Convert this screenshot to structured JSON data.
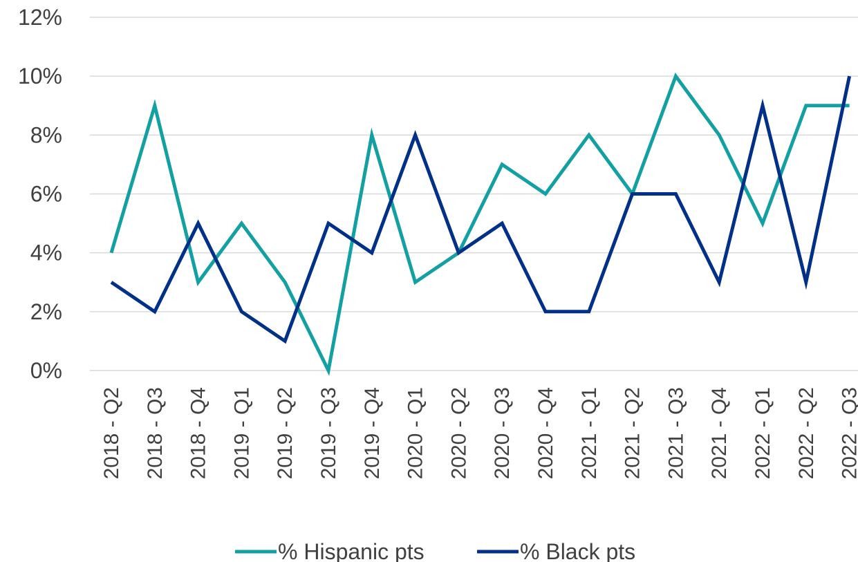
{
  "chart_data": {
    "type": "line",
    "categories": [
      "2018 - Q2",
      "2018 - Q3",
      "2018 - Q4",
      "2019 - Q1",
      "2019 - Q2",
      "2019 - Q3",
      "2019 - Q4",
      "2020 - Q1",
      "2020 - Q2",
      "2020 - Q3",
      "2020 - Q4",
      "2021 - Q1",
      "2021 - Q2",
      "2021 - Q3",
      "2021 - Q4",
      "2022 - Q1",
      "2022 - Q2",
      "2022 - Q3"
    ],
    "series": [
      {
        "name": "% Hispanic pts",
        "color": "#13A0A3",
        "values": [
          4,
          9,
          3,
          5,
          3,
          0,
          8,
          3,
          4,
          7,
          6,
          8,
          6,
          10,
          8,
          5,
          9,
          9
        ]
      },
      {
        "name": "% Black pts",
        "color": "#003087",
        "values": [
          3,
          2,
          5,
          2,
          1,
          5,
          4,
          8,
          4,
          5,
          2,
          2,
          6,
          6,
          3,
          9,
          3,
          10
        ]
      }
    ],
    "ylim": [
      0,
      12
    ],
    "yticks": [
      0,
      2,
      4,
      6,
      8,
      10,
      12
    ],
    "ytick_labels": [
      "0%",
      "2%",
      "4%",
      "6%",
      "8%",
      "10%",
      "12%"
    ],
    "grid": true,
    "legend_position": "bottom",
    "title": "",
    "xlabel": "",
    "ylabel": ""
  }
}
